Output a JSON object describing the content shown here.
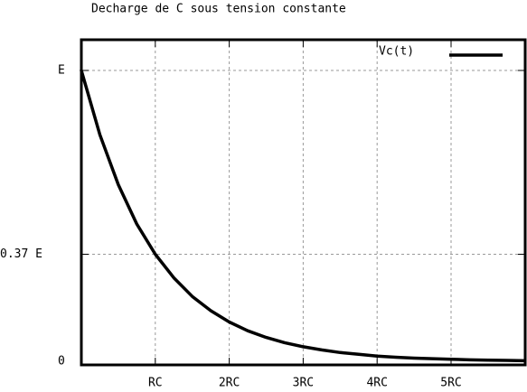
{
  "chart_data": {
    "type": "line",
    "title": "Decharge de C sous tension constante",
    "xlabel": "",
    "ylabel": "",
    "x_tick_labels": [
      "RC",
      "2RC",
      "3RC",
      "4RC",
      "5RC"
    ],
    "x_tick_values": [
      1,
      2,
      3,
      4,
      5
    ],
    "y_tick_labels": [
      "0",
      "0.37 E",
      "E"
    ],
    "y_tick_values": [
      0,
      0.368,
      1
    ],
    "xlim": [
      0,
      6
    ],
    "ylim": [
      0,
      1.1
    ],
    "grid": true,
    "legend_position": "top-right",
    "series": [
      {
        "name": "Vc(t)",
        "color": "#000000",
        "x": [
          0,
          0.25,
          0.5,
          0.75,
          1,
          1.25,
          1.5,
          1.75,
          2,
          2.25,
          2.5,
          2.75,
          3,
          3.25,
          3.5,
          3.75,
          4,
          4.25,
          4.5,
          4.75,
          5,
          5.25,
          5.5,
          5.75,
          6
        ],
        "y": [
          1.0,
          0.779,
          0.607,
          0.472,
          0.368,
          0.287,
          0.223,
          0.174,
          0.135,
          0.105,
          0.082,
          0.064,
          0.05,
          0.039,
          0.03,
          0.024,
          0.018,
          0.014,
          0.011,
          0.009,
          0.007,
          0.005,
          0.004,
          0.003,
          0.002
        ]
      }
    ]
  }
}
